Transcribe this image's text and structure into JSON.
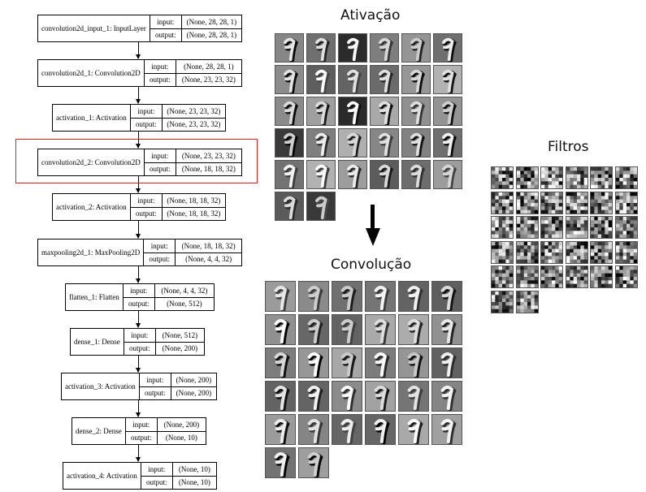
{
  "model": {
    "io_labels": {
      "input": "input:",
      "output": "output:"
    },
    "layers": [
      {
        "name": "convolution2d_input_1: InputLayer",
        "input": "(None, 28, 28, 1)",
        "output": "(None, 28, 28, 1)"
      },
      {
        "name": "convolution2d_1: Convolution2D",
        "input": "(None, 28, 28, 1)",
        "output": "(None, 23, 23, 32)"
      },
      {
        "name": "activation_1: Activation",
        "input": "(None, 23, 23, 32)",
        "output": "(None, 23, 23, 32)"
      },
      {
        "name": "convolution2d_2: Convolution2D",
        "input": "(None, 23, 23, 32)",
        "output": "(None, 18, 18, 32)"
      },
      {
        "name": "activation_2: Activation",
        "input": "(None, 18, 18, 32)",
        "output": "(None, 18, 18, 32)"
      },
      {
        "name": "maxpooling2d_1: MaxPooling2D",
        "input": "(None, 18, 18, 32)",
        "output": "(None, 4, 4, 32)"
      },
      {
        "name": "flatten_1: Flatten",
        "input": "(None, 4, 4, 32)",
        "output": "(None, 512)"
      },
      {
        "name": "dense_1: Dense",
        "input": "(None, 512)",
        "output": "(None, 200)"
      },
      {
        "name": "activation_3: Activation",
        "input": "(None, 200)",
        "output": "(None, 200)"
      },
      {
        "name": "dense_2: Dense",
        "input": "(None, 200)",
        "output": "(None, 10)"
      },
      {
        "name": "activation_4: Activation",
        "input": "(None, 10)",
        "output": "(None, 10)"
      }
    ],
    "highlighted_layer": 3
  },
  "panels": {
    "activation": {
      "title": "Ativação",
      "count": 32,
      "columns": 6
    },
    "convolution": {
      "title": "Convolução",
      "count": 32,
      "columns": 6
    },
    "filters": {
      "title": "Filtros",
      "count": 32,
      "columns": 6
    }
  },
  "colors": {
    "highlight": "#e0201b"
  }
}
